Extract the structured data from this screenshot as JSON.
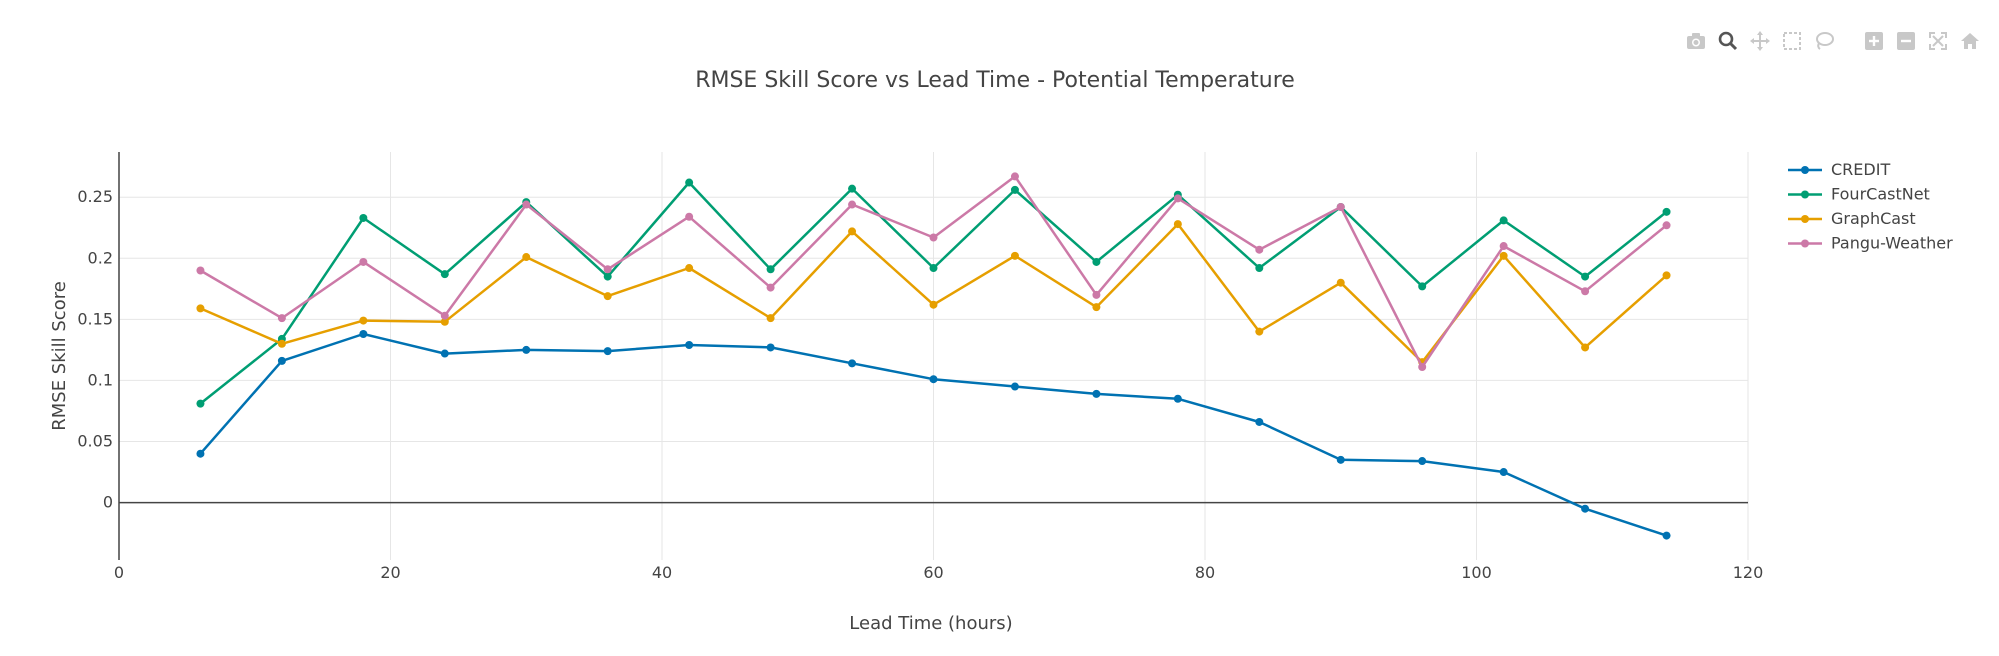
{
  "toolbar": {
    "icons": [
      "camera-icon",
      "zoom-icon",
      "pan-icon",
      "box-select-icon",
      "lasso-select-icon",
      "zoom-in-icon",
      "zoom-out-icon",
      "autoscale-icon",
      "reset-axes-icon"
    ]
  },
  "chart_data": {
    "type": "line",
    "title": "RMSE Skill Score vs Lead Time - Potential Temperature",
    "xlabel": "Lead Time (hours)",
    "ylabel": "RMSE Skill Score",
    "xlim": [
      0,
      120
    ],
    "ylim": [
      -0.047,
      0.287
    ],
    "x_ticks": [
      0,
      20,
      40,
      60,
      80,
      100,
      120
    ],
    "y_ticks": [
      0,
      0.05,
      0.1,
      0.15,
      0.2,
      0.25
    ],
    "y_tick_labels": [
      "0",
      "0.05",
      "0.1",
      "0.15",
      "0.2",
      "0.25"
    ],
    "grid": true,
    "legend_position": "top-right",
    "x": [
      6,
      12,
      18,
      24,
      30,
      36,
      42,
      48,
      54,
      60,
      66,
      72,
      78,
      84,
      90,
      96,
      102,
      108,
      114
    ],
    "series": [
      {
        "name": "CREDIT",
        "color": "#0072B2",
        "values": [
          0.04,
          0.116,
          0.138,
          0.122,
          0.125,
          0.124,
          0.129,
          0.127,
          0.114,
          0.101,
          0.095,
          0.089,
          0.085,
          0.066,
          0.035,
          0.034,
          0.025,
          -0.005,
          -0.027
        ]
      },
      {
        "name": "FourCastNet",
        "color": "#009E73",
        "values": [
          0.081,
          0.134,
          0.233,
          0.187,
          0.246,
          0.185,
          0.262,
          0.191,
          0.257,
          0.192,
          0.256,
          0.197,
          0.252,
          0.192,
          0.242,
          0.177,
          0.231,
          0.185,
          0.238
        ]
      },
      {
        "name": "GraphCast",
        "color": "#E69F00",
        "values": [
          0.159,
          0.13,
          0.149,
          0.148,
          0.201,
          0.169,
          0.192,
          0.151,
          0.222,
          0.162,
          0.202,
          0.16,
          0.228,
          0.14,
          0.18,
          0.115,
          0.202,
          0.127,
          0.186
        ]
      },
      {
        "name": "Pangu-Weather",
        "color": "#CC79A7",
        "values": [
          0.19,
          0.151,
          0.197,
          0.153,
          0.244,
          0.191,
          0.234,
          0.176,
          0.244,
          0.217,
          0.267,
          0.17,
          0.249,
          0.207,
          0.242,
          0.111,
          0.21,
          0.173,
          0.227
        ]
      }
    ]
  }
}
